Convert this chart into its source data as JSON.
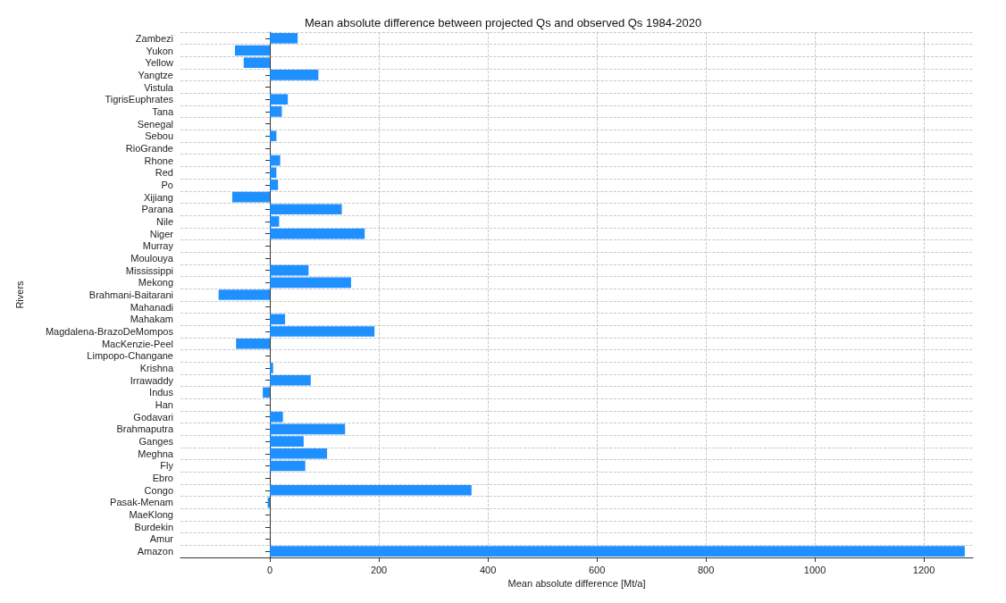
{
  "chart_data": {
    "type": "bar",
    "orientation": "horizontal",
    "title": "Mean absolute difference between projected Qs and observed Qs 1984-2020",
    "xlabel": "Mean absolute difference [Mt/a]",
    "ylabel": "Rivers",
    "categories": [
      "Zambezi",
      "Yukon",
      "Yellow",
      "Yangtze",
      "Vistula",
      "TigrisEuphrates",
      "Tana",
      "Senegal",
      "Sebou",
      "RioGrande",
      "Rhone",
      "Red",
      "Po",
      "Xijiang",
      "Parana",
      "Nile",
      "Niger",
      "Murray",
      "Moulouya",
      "Mississippi",
      "Mekong",
      "Brahmani-Baitarani",
      "Mahanadi",
      "Mahakam",
      "Magdalena-BrazoDeMompos",
      "MacKenzie-Peel",
      "Limpopo-Changane",
      "Krishna",
      "Irrawaddy",
      "Indus",
      "Han",
      "Godavari",
      "Brahmaputra",
      "Ganges",
      "Meghna",
      "Fly",
      "Ebro",
      "Congo",
      "Pasak-Menam",
      "MaeKlong",
      "Burdekin",
      "Amur",
      "Amazon"
    ],
    "values": [
      51,
      -64,
      -48,
      89,
      0,
      33,
      22,
      0,
      12,
      0,
      19,
      12,
      15,
      -69,
      132,
      17,
      174,
      0,
      0,
      71,
      149,
      -94,
      0,
      28,
      192,
      -62,
      0,
      6,
      75,
      -13,
      0,
      24,
      138,
      62,
      105,
      65,
      0,
      370,
      -4,
      0,
      0,
      0,
      1275
    ],
    "color": "#1e90ff",
    "xlim": [
      -164,
      1290
    ],
    "xticks": [
      0,
      200,
      400,
      600,
      800,
      1000,
      1200
    ],
    "grid": true
  }
}
